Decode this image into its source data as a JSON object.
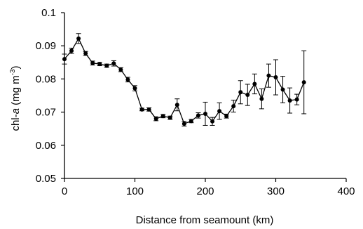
{
  "chart_data": {
    "type": "line",
    "xlabel": "Distance from seamount (km)",
    "ylabel": {
      "prefix": "chl-",
      "italic": "a",
      "unit": " (mg m",
      "sup": "-3",
      "close": ")"
    },
    "xlim": [
      0,
      400
    ],
    "ylim": [
      0.05,
      0.1
    ],
    "xticks": [
      0,
      100,
      200,
      300,
      400
    ],
    "yticks": [
      0.05,
      0.06,
      0.07,
      0.08,
      0.09,
      0.1
    ],
    "ytick_labels": [
      "0.05",
      "0.06",
      "0.07",
      "0.08",
      "0.09",
      "0.1"
    ],
    "grid": false,
    "marker": "circle",
    "series": [
      {
        "x": [
          0,
          10,
          20,
          30,
          40,
          50,
          60,
          70,
          80,
          90,
          100,
          110,
          120,
          130,
          140,
          150,
          160,
          170,
          180,
          190,
          200,
          210,
          220,
          230,
          240,
          250,
          260,
          270,
          280,
          290,
          300,
          310,
          320,
          330,
          340
        ],
        "y": [
          0.086,
          0.0885,
          0.0922,
          0.0877,
          0.0848,
          0.0845,
          0.084,
          0.0847,
          0.0828,
          0.0798,
          0.0772,
          0.0708,
          0.0708,
          0.068,
          0.0688,
          0.0683,
          0.0722,
          0.0665,
          0.0673,
          0.069,
          0.0695,
          0.0672,
          0.0703,
          0.0688,
          0.0718,
          0.076,
          0.0752,
          0.0785,
          0.074,
          0.081,
          0.0805,
          0.0768,
          0.0735,
          0.0738,
          0.079
        ],
        "err": [
          0.0015,
          0.0008,
          0.0015,
          0.0006,
          0.0006,
          0.0005,
          0.0005,
          0.0008,
          0.0006,
          0.0007,
          0.0008,
          0.0004,
          0.0005,
          0.0006,
          0.0005,
          0.0005,
          0.0018,
          0.0007,
          0.0005,
          0.0008,
          0.0035,
          0.0012,
          0.0025,
          0.0006,
          0.0018,
          0.0035,
          0.0032,
          0.003,
          0.003,
          0.0035,
          0.0053,
          0.004,
          0.0038,
          0.0016,
          0.0095
        ]
      }
    ],
    "colors": {
      "line": "#000000",
      "axis": "#000000"
    }
  }
}
